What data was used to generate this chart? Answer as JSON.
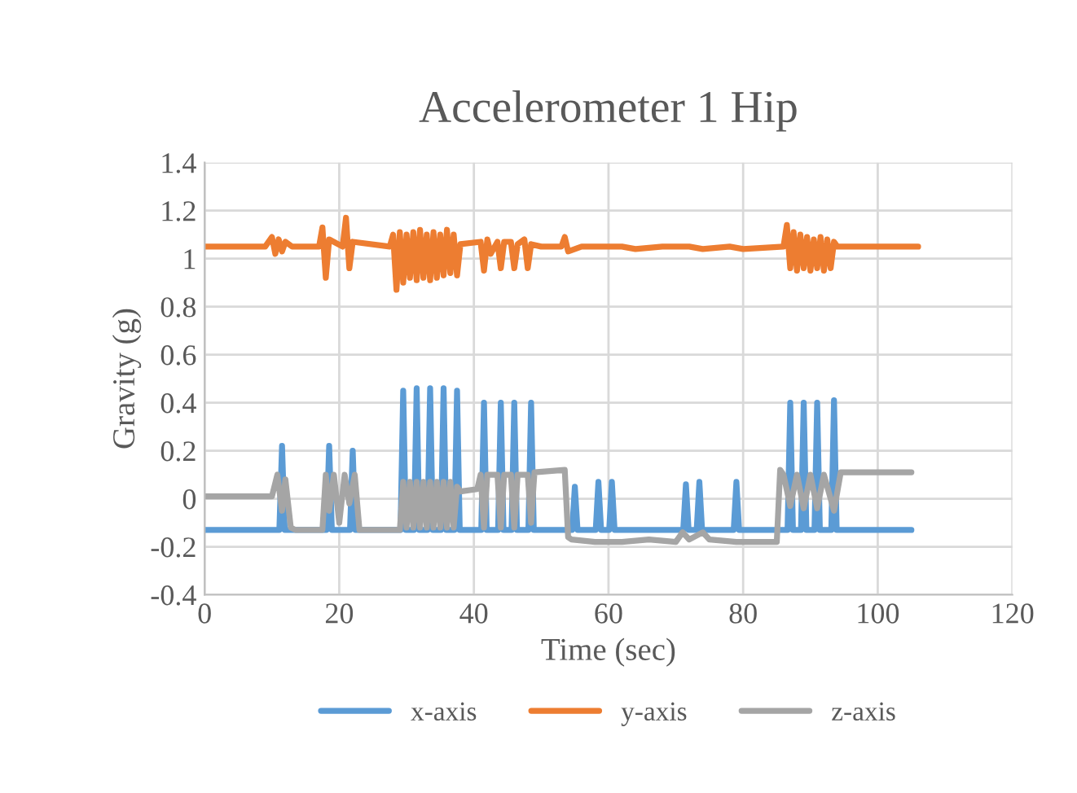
{
  "chart_data": {
    "type": "line",
    "title": "Accelerometer 1 Hip",
    "xlabel": "Time (sec)",
    "ylabel": "Gravity (g)",
    "xlim": [
      0,
      120
    ],
    "xticks": [
      0,
      20,
      40,
      60,
      80,
      100,
      120
    ],
    "ylim": [
      -0.4,
      1.4
    ],
    "yticks": [
      -0.4,
      -0.2,
      0,
      0.2,
      0.4,
      0.6,
      0.8,
      1,
      1.2,
      1.4
    ],
    "grid": true,
    "legend": "bottom",
    "marker": "none",
    "line_style": "solid",
    "series": [
      {
        "name": "x-axis",
        "color": "#5b9bd5",
        "x": [
          0,
          11.1,
          11.5,
          11.9,
          18.1,
          18.5,
          18.9,
          21.6,
          22,
          22.4,
          29.1,
          29.5,
          29.9,
          31.1,
          31.5,
          31.9,
          33.1,
          33.5,
          33.9,
          35.1,
          35.5,
          35.9,
          37.1,
          37.5,
          37.9,
          41.1,
          41.5,
          41.9,
          43.6,
          44,
          44.4,
          45.6,
          46,
          46.4,
          48.1,
          48.5,
          48.9,
          54.6,
          55,
          55.4,
          58.1,
          58.5,
          58.9,
          60.1,
          60.5,
          60.9,
          71.1,
          71.5,
          71.9,
          73.1,
          73.5,
          73.9,
          78.6,
          79,
          79.4,
          86.6,
          87,
          87.4,
          88.6,
          89,
          89.4,
          90.6,
          91,
          91.4,
          93.1,
          93.5,
          93.9,
          105
        ],
        "values": [
          -0.13,
          -0.13,
          0.22,
          -0.13,
          -0.13,
          0.22,
          -0.13,
          -0.13,
          0.2,
          -0.13,
          -0.13,
          0.45,
          -0.13,
          -0.13,
          0.46,
          -0.13,
          -0.13,
          0.46,
          -0.13,
          -0.13,
          0.46,
          -0.13,
          -0.13,
          0.45,
          -0.13,
          -0.13,
          0.4,
          -0.13,
          -0.13,
          0.4,
          -0.13,
          -0.13,
          0.4,
          -0.13,
          -0.13,
          0.4,
          -0.13,
          -0.13,
          0.05,
          -0.13,
          -0.13,
          0.07,
          -0.13,
          -0.13,
          0.07,
          -0.13,
          -0.13,
          0.06,
          -0.13,
          -0.13,
          0.07,
          -0.13,
          -0.13,
          0.07,
          -0.13,
          -0.13,
          0.4,
          -0.13,
          -0.13,
          0.4,
          -0.13,
          -0.13,
          0.4,
          -0.13,
          -0.13,
          0.41,
          -0.13,
          -0.13
        ]
      },
      {
        "name": "y-axis",
        "color": "#ed7d31",
        "x": [
          0,
          9,
          10,
          10.5,
          11,
          11.5,
          12,
          13,
          17,
          17.5,
          18,
          18.5,
          20.5,
          21,
          21.5,
          22,
          27.5,
          28,
          28.5,
          29,
          29.5,
          30,
          30.5,
          31,
          31.5,
          32,
          32.5,
          33,
          33.5,
          34,
          34.5,
          35,
          35.5,
          36,
          36.5,
          37,
          37.5,
          38,
          41,
          41.5,
          42,
          42.5,
          43.5,
          44,
          44.5,
          45.5,
          46,
          46.5,
          47.5,
          48,
          48.5,
          50,
          53,
          53.5,
          54,
          56,
          62,
          64,
          68,
          72,
          74,
          78,
          80,
          86,
          86.5,
          87,
          87.5,
          88,
          88.5,
          89,
          89.5,
          90,
          90.5,
          91,
          91.5,
          92,
          92.5,
          93,
          93.5,
          94,
          96,
          106
        ],
        "values": [
          1.05,
          1.05,
          1.09,
          1.02,
          1.08,
          1.03,
          1.07,
          1.05,
          1.05,
          1.13,
          0.92,
          1.08,
          1.05,
          1.17,
          0.96,
          1.07,
          1.05,
          1.1,
          0.87,
          1.11,
          0.9,
          1.1,
          0.92,
          1.11,
          0.91,
          1.12,
          0.92,
          1.1,
          0.91,
          1.11,
          0.92,
          1.1,
          0.93,
          1.12,
          0.94,
          1.1,
          0.93,
          1.06,
          1.07,
          0.95,
          1.08,
          1.02,
          1.07,
          0.96,
          1.07,
          1.07,
          0.96,
          1.06,
          1.08,
          0.96,
          1.06,
          1.05,
          1.05,
          1.09,
          1.03,
          1.05,
          1.05,
          1.04,
          1.05,
          1.05,
          1.04,
          1.05,
          1.04,
          1.05,
          1.14,
          0.96,
          1.11,
          0.95,
          1.1,
          0.96,
          1.09,
          0.95,
          1.08,
          0.96,
          1.09,
          0.95,
          1.08,
          0.96,
          1.07,
          1.05,
          1.05,
          1.05
        ]
      },
      {
        "name": "z-axis",
        "color": "#a5a5a5",
        "x": [
          0,
          10,
          10.8,
          11.5,
          12,
          12.8,
          13.5,
          17.5,
          18,
          18.5,
          19.2,
          20,
          20.8,
          21.5,
          22.3,
          23,
          29,
          29.5,
          30,
          30.5,
          31,
          31.5,
          32,
          32.5,
          33,
          33.5,
          34,
          34.5,
          35,
          35.5,
          36,
          36.5,
          37,
          37.5,
          38,
          40.5,
          41,
          41.5,
          42,
          43.5,
          44,
          44.5,
          45.5,
          46,
          46.5,
          48,
          48.5,
          49,
          53.5,
          54,
          54.5,
          58,
          62,
          66,
          70,
          71,
          72,
          74,
          75,
          79,
          80,
          85,
          85.5,
          86,
          87,
          88,
          89,
          90,
          91,
          92,
          93.5,
          94.5,
          105
        ],
        "values": [
          0.01,
          0.01,
          0.1,
          -0.05,
          0.08,
          -0.12,
          -0.13,
          -0.13,
          0.1,
          -0.05,
          0.1,
          -0.1,
          0.1,
          -0.02,
          0.1,
          -0.13,
          -0.13,
          0.07,
          -0.12,
          0.07,
          -0.12,
          0.07,
          -0.12,
          0.07,
          -0.12,
          0.07,
          -0.12,
          0.07,
          -0.12,
          0.07,
          -0.12,
          0.07,
          -0.12,
          0.05,
          0.03,
          0.04,
          0.1,
          -0.12,
          0.1,
          0.1,
          -0.12,
          0.1,
          0.1,
          -0.12,
          0.1,
          0.1,
          -0.1,
          0.11,
          0.12,
          -0.16,
          -0.17,
          -0.18,
          -0.18,
          -0.17,
          -0.18,
          -0.14,
          -0.17,
          -0.14,
          -0.17,
          -0.18,
          -0.18,
          -0.18,
          0.12,
          0.1,
          -0.03,
          0.1,
          -0.04,
          0.1,
          -0.04,
          0.1,
          -0.05,
          0.11,
          0.11
        ]
      }
    ]
  }
}
